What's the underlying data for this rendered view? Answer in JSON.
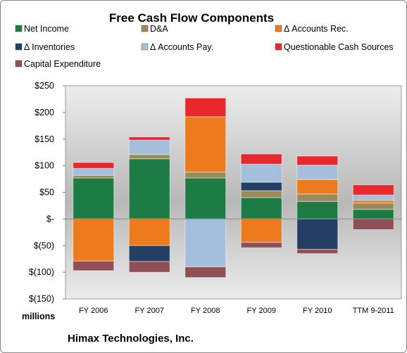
{
  "chart_data": {
    "type": "bar",
    "stacked": true,
    "title": "Free Cash Flow Components",
    "units_label": "millions",
    "company_label": "Himax Technologies, Inc.",
    "categories": [
      "FY 2006",
      "FY 2007",
      "FY 2008",
      "FY 2009",
      "FY 2010",
      "TTM 9-2011"
    ],
    "ylim": [
      -150,
      250
    ],
    "yticks": [
      250,
      200,
      150,
      100,
      50,
      0,
      -50,
      -100,
      -150
    ],
    "ytick_labels": [
      "$250",
      "$200",
      "$150",
      "$100",
      "$50",
      "$-",
      "$(50)",
      "$(100)",
      "$(150)"
    ],
    "legend_position": "top",
    "grid": false,
    "series": [
      {
        "name": "Net Income",
        "color": "#1e7b45",
        "values": [
          77,
          113,
          77,
          40,
          33,
          18
        ]
      },
      {
        "name": "D&A",
        "color": "#9c8a5a",
        "values": [
          5,
          8,
          11,
          13,
          14,
          12
        ]
      },
      {
        "name": "Δ Accounts Rec.",
        "color": "#ee7a1e",
        "values": [
          -79,
          -50,
          104,
          -44,
          27,
          5
        ]
      },
      {
        "name": "Δ Inventories",
        "color": "#233f63",
        "values": [
          0,
          -30,
          0,
          16,
          -57,
          0
        ]
      },
      {
        "name": "Δ Accounts Pay.",
        "color": "#a3bfdc",
        "values": [
          13,
          27,
          -90,
          34,
          27,
          10
        ]
      },
      {
        "name": "Questionable Cash Sources",
        "color": "#e8282c",
        "values": [
          11,
          6,
          35,
          19,
          17,
          19
        ]
      },
      {
        "name": "Capital Expenditure",
        "color": "#8f4f54",
        "values": [
          -18,
          -20,
          -20,
          -10,
          -8,
          -20
        ]
      }
    ]
  }
}
